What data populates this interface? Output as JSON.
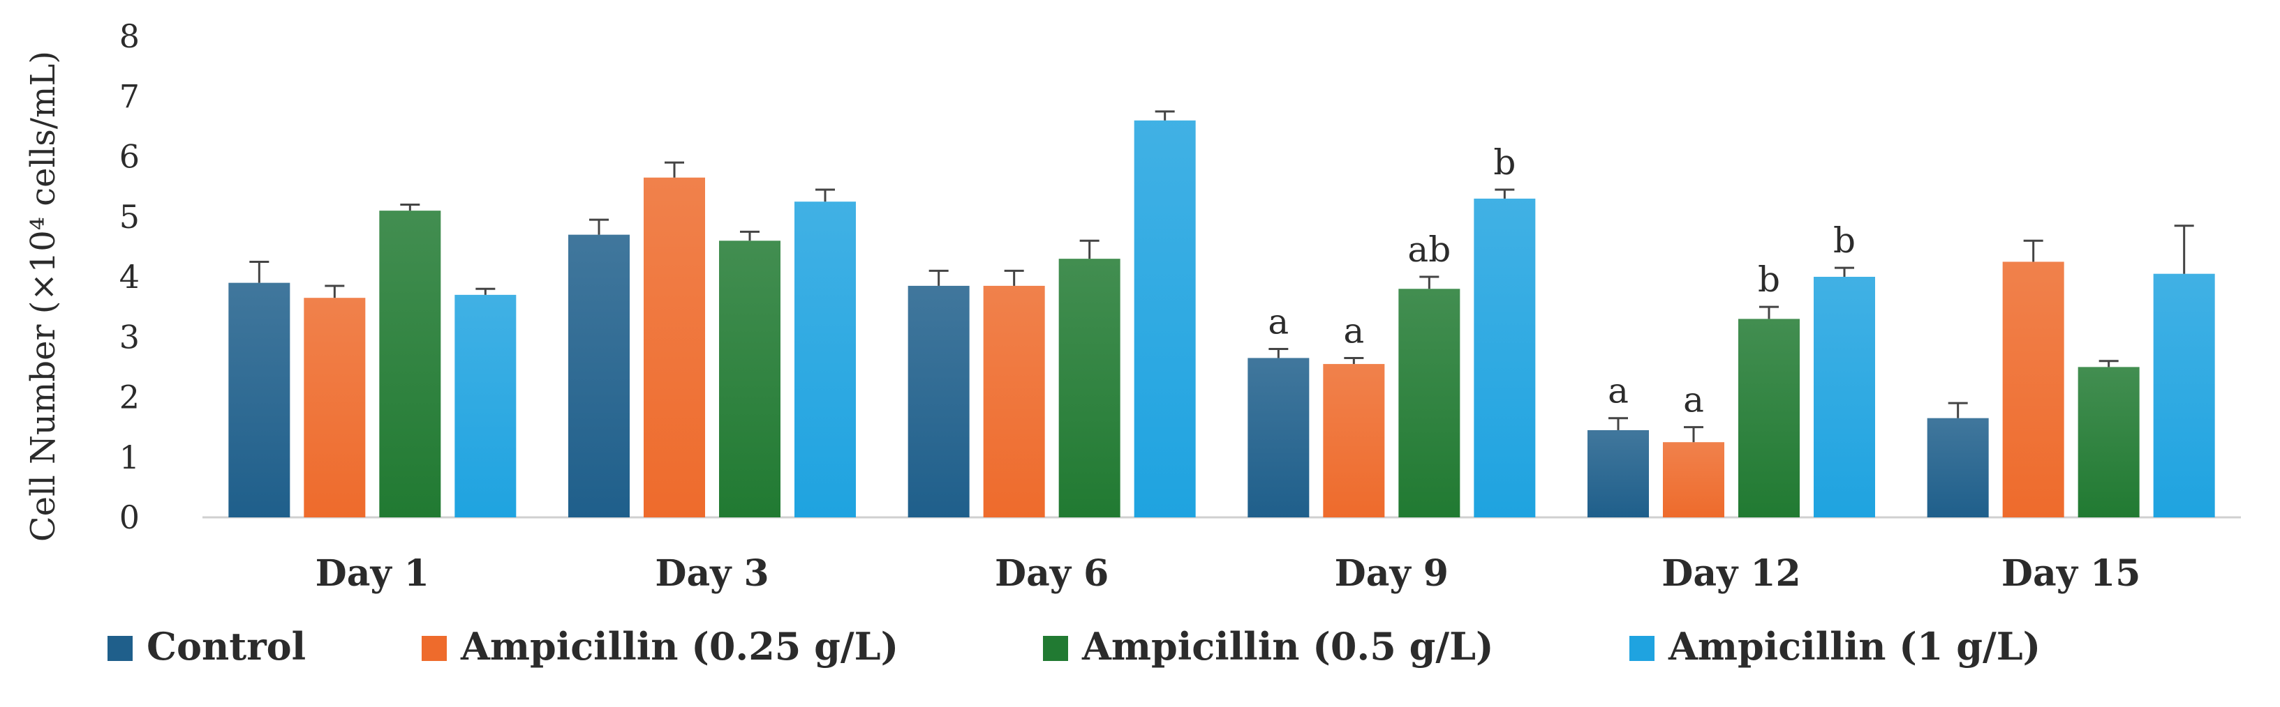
{
  "chart_data": {
    "type": "bar",
    "ylabel": "Cell Number (×10⁴ cells/mL)",
    "ylim": [
      0,
      8
    ],
    "yticks": [
      0,
      1,
      2,
      3,
      4,
      5,
      6,
      7,
      8
    ],
    "grid": false,
    "legend_position": "bottom",
    "categories": [
      "Day 1",
      "Day 3",
      "Day 6",
      "Day 9",
      "Day 12",
      "Day 15"
    ],
    "series": [
      {
        "name": "Control",
        "color": "#1f5f8b",
        "values": [
          3.9,
          4.7,
          3.85,
          2.65,
          1.45,
          1.65
        ],
        "errors": [
          0.35,
          0.25,
          0.25,
          0.15,
          0.2,
          0.25
        ],
        "sig_labels": [
          "",
          "",
          "",
          "a",
          "a",
          ""
        ]
      },
      {
        "name": "Ampicillin (0.25 g/L)",
        "color": "#ee6b2c",
        "values": [
          3.65,
          5.65,
          3.85,
          2.55,
          1.25,
          4.25
        ],
        "errors": [
          0.2,
          0.25,
          0.25,
          0.1,
          0.25,
          0.35
        ],
        "sig_labels": [
          "",
          "",
          "",
          "a",
          "a",
          ""
        ]
      },
      {
        "name": "Ampicillin (0.5 g/L)",
        "color": "#217a32",
        "values": [
          5.1,
          4.6,
          4.3,
          3.8,
          3.3,
          2.5
        ],
        "errors": [
          0.1,
          0.15,
          0.3,
          0.2,
          0.2,
          0.1
        ],
        "sig_labels": [
          "",
          "",
          "",
          "ab",
          "b",
          ""
        ]
      },
      {
        "name": "Ampicillin (1 g/L)",
        "color": "#1fa3e0",
        "values": [
          3.7,
          5.25,
          6.6,
          5.3,
          4.0,
          4.05
        ],
        "errors": [
          0.1,
          0.2,
          0.15,
          0.15,
          0.15,
          0.8
        ],
        "sig_labels": [
          "",
          "",
          "",
          "b",
          "b",
          ""
        ]
      }
    ]
  }
}
